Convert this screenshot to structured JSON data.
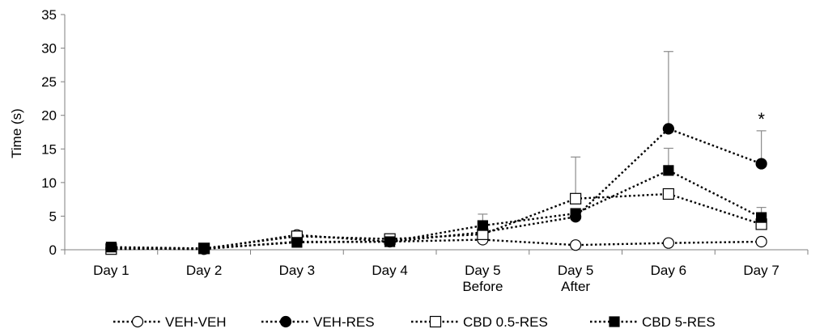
{
  "chart_data": {
    "type": "line",
    "ylabel": "Time (s)",
    "ylim": [
      0,
      35
    ],
    "yticks": [
      "0",
      "5",
      "10",
      "15",
      "20",
      "25",
      "30",
      "35"
    ],
    "categories": [
      [
        "Day 1"
      ],
      [
        "Day 2"
      ],
      [
        "Day 3"
      ],
      [
        "Day 4"
      ],
      [
        "Day 5",
        "Before"
      ],
      [
        "Day 5",
        "After"
      ],
      [
        "Day 6"
      ],
      [
        "Day 7"
      ]
    ],
    "grid": false,
    "legend_position": "bottom",
    "series": [
      {
        "name": "VEH-VEH",
        "marker": "circle-open",
        "values": [
          0.2,
          0.1,
          2.2,
          1.2,
          1.5,
          0.7,
          1.0,
          1.2
        ],
        "error": [
          0.1,
          0.1,
          0.4,
          0.3,
          0.3,
          0.2,
          0.2,
          0.2
        ]
      },
      {
        "name": "VEH-RES",
        "marker": "circle-filled",
        "values": [
          0.2,
          0.1,
          1.2,
          1.2,
          2.6,
          4.9,
          18.0,
          12.8
        ],
        "error": [
          0.1,
          0.1,
          0.4,
          0.3,
          0.5,
          0.6,
          11.5,
          4.9
        ]
      },
      {
        "name": "CBD 0.5-RES",
        "marker": "square-open",
        "values": [
          0.1,
          0.2,
          2.0,
          1.6,
          2.3,
          7.6,
          8.3,
          3.8
        ],
        "error": [
          0.1,
          0.1,
          0.4,
          0.3,
          0.6,
          6.2,
          0.6,
          0.7
        ]
      },
      {
        "name": "CBD 5-RES",
        "marker": "square-filled",
        "values": [
          0.4,
          0.2,
          1.1,
          1.2,
          3.6,
          5.4,
          11.8,
          4.8
        ],
        "error": [
          0.1,
          0.1,
          0.3,
          0.3,
          1.7,
          0.6,
          3.3,
          1.5
        ]
      }
    ],
    "annotations": [
      {
        "text": "*",
        "category_index": 7,
        "y": 19.5
      }
    ]
  }
}
